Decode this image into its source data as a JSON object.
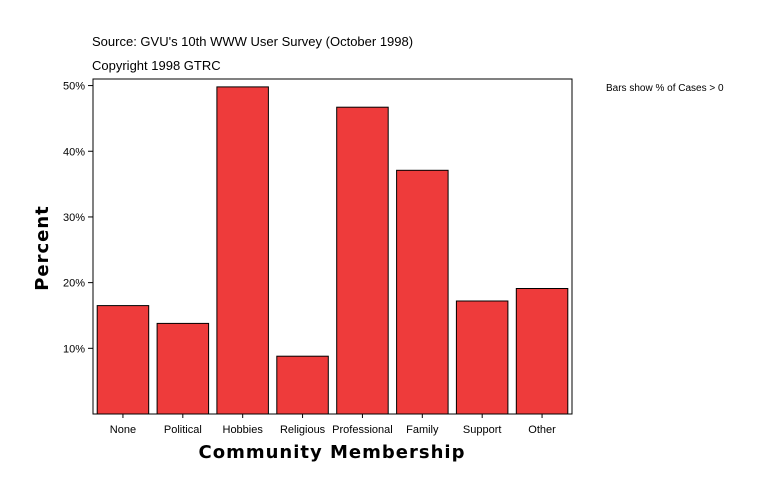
{
  "header": {
    "source": "Source: GVU's 10th WWW User Survey (October 1998)",
    "copyright": "Copyright 1998 GTRC"
  },
  "note": "Bars show % of Cases > 0",
  "chart_data": {
    "type": "bar",
    "categories": [
      "None",
      "Political",
      "Hobbies",
      "Religious",
      "Professional",
      "Family",
      "Support",
      "Other"
    ],
    "values": [
      16.5,
      13.8,
      49.8,
      8.8,
      46.7,
      37.1,
      17.2,
      19.1
    ],
    "xlabel": "Community Membership",
    "ylabel": "Percent",
    "ylim": [
      0,
      51
    ],
    "yticks": [
      10,
      20,
      30,
      40,
      50
    ],
    "ytick_labels": [
      "10%",
      "20%",
      "30%",
      "40%",
      "50%"
    ],
    "bar_color": "#ee3b3b",
    "grid": false,
    "legend": "none"
  }
}
